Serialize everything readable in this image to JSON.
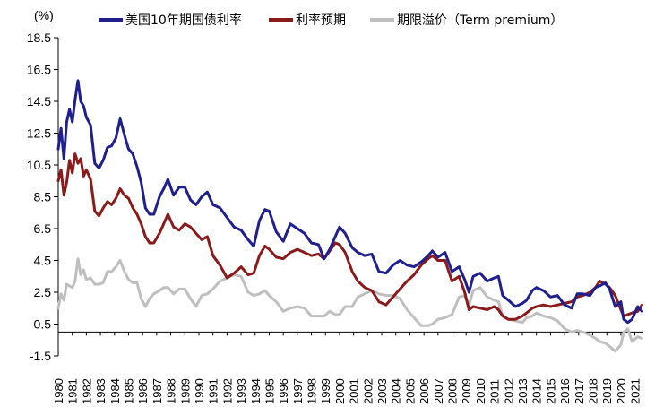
{
  "chart_data": {
    "type": "line",
    "title": "",
    "unit_label": "(%)",
    "xlabel": "",
    "ylabel": "(%)",
    "ylim": [
      -1.5,
      18.5
    ],
    "yticks": [
      -1.5,
      0.5,
      2.5,
      4.5,
      6.5,
      8.5,
      10.5,
      12.5,
      14.5,
      16.5,
      18.5
    ],
    "ytick_labels": [
      "-1.5",
      "0.5",
      "2.5",
      "4.5",
      "6.5",
      "8.5",
      "10.5",
      "12.5",
      "14.5",
      "16.5",
      "18.5"
    ],
    "xlim": [
      1980,
      2021.6
    ],
    "xtick_labels": [
      "1980",
      "1981",
      "1982",
      "1983",
      "1984",
      "1985",
      "1986",
      "1987",
      "1988",
      "1989",
      "1990",
      "1991",
      "1992",
      "1993",
      "1994",
      "1995",
      "1996",
      "1997",
      "1998",
      "1999",
      "2000",
      "2001",
      "2002",
      "2003",
      "2004",
      "2005",
      "2006",
      "2007",
      "2008",
      "2009",
      "2010",
      "2011",
      "2012",
      "2013",
      "2014",
      "2015",
      "2016",
      "2017",
      "2018",
      "2019",
      "2020",
      "2021"
    ],
    "legend_position": "top",
    "series": [
      {
        "name": "美国10年期国债利率",
        "color": "#1f1f8f",
        "x": [
          1980.0,
          1980.2,
          1980.4,
          1980.6,
          1980.8,
          1981.0,
          1981.2,
          1981.4,
          1981.6,
          1981.8,
          1982.0,
          1982.3,
          1982.6,
          1982.9,
          1983.2,
          1983.5,
          1983.8,
          1984.1,
          1984.4,
          1984.7,
          1985.0,
          1985.3,
          1985.6,
          1985.9,
          1986.2,
          1986.5,
          1986.8,
          1987.2,
          1987.5,
          1987.8,
          1988.2,
          1988.6,
          1989.0,
          1989.4,
          1989.8,
          1990.2,
          1990.6,
          1991.0,
          1991.5,
          1992.0,
          1992.5,
          1993.0,
          1993.5,
          1993.9,
          1994.3,
          1994.7,
          1995.0,
          1995.5,
          1996.0,
          1996.5,
          1997.0,
          1997.5,
          1998.0,
          1998.5,
          1998.9,
          1999.3,
          1999.7,
          2000.0,
          2000.4,
          2000.9,
          2001.3,
          2001.8,
          2002.3,
          2002.8,
          2003.3,
          2003.8,
          2004.3,
          2004.8,
          2005.3,
          2005.8,
          2006.3,
          2006.6,
          2007.0,
          2007.5,
          2008.0,
          2008.5,
          2008.9,
          2009.2,
          2009.5,
          2010.0,
          2010.5,
          2011.0,
          2011.3,
          2011.6,
          2012.0,
          2012.5,
          2013.0,
          2013.3,
          2013.7,
          2014.0,
          2014.5,
          2015.0,
          2015.5,
          2016.0,
          2016.5,
          2016.9,
          2017.3,
          2017.8,
          2018.2,
          2018.5,
          2018.9,
          2019.2,
          2019.6,
          2020.0,
          2020.2,
          2020.5,
          2020.8,
          2021.2,
          2021.5
        ],
        "values": [
          11.5,
          12.8,
          10.9,
          13.2,
          14.0,
          13.2,
          14.6,
          15.8,
          14.5,
          14.2,
          13.5,
          13.0,
          10.6,
          10.3,
          10.8,
          11.6,
          11.7,
          12.2,
          13.4,
          12.4,
          11.5,
          11.2,
          10.4,
          9.4,
          7.8,
          7.4,
          7.4,
          8.5,
          9.0,
          9.6,
          8.6,
          9.1,
          9.1,
          8.3,
          8.0,
          8.5,
          8.8,
          8.0,
          7.8,
          7.2,
          6.6,
          6.4,
          5.8,
          5.4,
          7.0,
          7.7,
          7.6,
          6.3,
          5.7,
          6.8,
          6.5,
          6.2,
          5.6,
          5.5,
          4.6,
          5.2,
          6.0,
          6.6,
          6.2,
          5.3,
          5.0,
          4.8,
          4.9,
          3.8,
          3.7,
          4.2,
          4.5,
          4.2,
          4.1,
          4.4,
          4.8,
          5.1,
          4.7,
          5.0,
          3.8,
          4.1,
          3.3,
          2.5,
          3.5,
          3.7,
          3.2,
          3.4,
          3.5,
          2.3,
          2.0,
          1.6,
          1.8,
          2.0,
          2.6,
          2.8,
          2.6,
          2.2,
          2.3,
          1.7,
          1.5,
          2.4,
          2.4,
          2.3,
          2.8,
          2.9,
          3.1,
          2.7,
          1.6,
          1.9,
          0.8,
          0.6,
          0.8,
          1.6,
          1.3
        ]
      },
      {
        "name": "利率预期",
        "color": "#8b1a1a",
        "x": [
          1980.0,
          1980.2,
          1980.4,
          1980.6,
          1980.8,
          1981.0,
          1981.2,
          1981.4,
          1981.6,
          1981.8,
          1982.0,
          1982.3,
          1982.6,
          1982.9,
          1983.2,
          1983.5,
          1983.8,
          1984.1,
          1984.4,
          1984.7,
          1985.0,
          1985.3,
          1985.6,
          1985.9,
          1986.2,
          1986.5,
          1986.8,
          1987.2,
          1987.5,
          1987.8,
          1988.2,
          1988.6,
          1989.0,
          1989.4,
          1989.8,
          1990.2,
          1990.6,
          1991.0,
          1991.5,
          1992.0,
          1992.5,
          1993.0,
          1993.5,
          1993.9,
          1994.3,
          1994.7,
          1995.0,
          1995.5,
          1996.0,
          1996.5,
          1997.0,
          1997.5,
          1998.0,
          1998.5,
          1998.9,
          1999.3,
          1999.7,
          2000.0,
          2000.4,
          2000.9,
          2001.3,
          2001.8,
          2002.3,
          2002.8,
          2003.3,
          2003.8,
          2004.3,
          2004.8,
          2005.3,
          2005.8,
          2006.3,
          2006.6,
          2007.0,
          2007.5,
          2008.0,
          2008.5,
          2008.9,
          2009.2,
          2009.5,
          2010.0,
          2010.5,
          2011.0,
          2011.3,
          2011.6,
          2012.0,
          2012.5,
          2013.0,
          2013.3,
          2013.7,
          2014.0,
          2014.5,
          2015.0,
          2015.5,
          2016.0,
          2016.5,
          2016.9,
          2017.3,
          2017.8,
          2018.2,
          2018.5,
          2018.9,
          2019.2,
          2019.6,
          2020.0,
          2020.2,
          2020.5,
          2020.8,
          2021.2,
          2021.5
        ],
        "values": [
          9.5,
          10.2,
          8.6,
          9.4,
          10.8,
          10.0,
          11.2,
          10.6,
          10.9,
          9.8,
          10.2,
          9.6,
          7.6,
          7.3,
          7.8,
          8.2,
          8.0,
          8.4,
          9.0,
          8.6,
          8.4,
          7.8,
          7.4,
          6.8,
          6.0,
          5.6,
          5.6,
          6.2,
          6.8,
          7.4,
          6.6,
          6.4,
          6.8,
          6.6,
          6.2,
          5.8,
          6.0,
          4.8,
          4.2,
          3.4,
          3.7,
          4.1,
          3.6,
          3.7,
          4.8,
          5.4,
          5.2,
          4.7,
          4.6,
          5.0,
          5.2,
          5.0,
          4.8,
          4.9,
          4.6,
          5.1,
          5.6,
          5.5,
          5.0,
          3.8,
          3.2,
          2.8,
          2.6,
          1.9,
          1.7,
          2.2,
          2.7,
          3.2,
          3.6,
          4.2,
          4.6,
          4.8,
          4.5,
          4.5,
          3.2,
          3.5,
          2.5,
          1.4,
          1.6,
          1.5,
          1.4,
          1.6,
          1.4,
          1.0,
          0.8,
          0.8,
          1.0,
          1.2,
          1.5,
          1.6,
          1.7,
          1.6,
          1.7,
          1.8,
          1.9,
          2.2,
          2.3,
          2.5,
          2.8,
          3.2,
          3.0,
          2.8,
          2.3,
          1.4,
          1.0,
          1.1,
          1.2,
          1.3,
          1.7
        ]
      },
      {
        "name": "期限溢价（Term premium）",
        "color": "#bfbfbf",
        "x": [
          1980.0,
          1980.2,
          1980.4,
          1980.6,
          1980.8,
          1981.0,
          1981.2,
          1981.4,
          1981.6,
          1981.8,
          1982.0,
          1982.3,
          1982.6,
          1982.9,
          1983.2,
          1983.5,
          1983.8,
          1984.1,
          1984.4,
          1984.7,
          1985.0,
          1985.3,
          1985.6,
          1985.9,
          1986.2,
          1986.5,
          1986.8,
          1987.2,
          1987.5,
          1987.8,
          1988.2,
          1988.6,
          1989.0,
          1989.4,
          1989.8,
          1990.2,
          1990.6,
          1991.0,
          1991.5,
          1992.0,
          1992.5,
          1993.0,
          1993.5,
          1993.9,
          1994.3,
          1994.7,
          1995.0,
          1995.5,
          1996.0,
          1996.5,
          1997.0,
          1997.5,
          1998.0,
          1998.5,
          1998.9,
          1999.3,
          1999.7,
          2000.0,
          2000.4,
          2000.9,
          2001.3,
          2001.8,
          2002.3,
          2002.8,
          2003.3,
          2003.8,
          2004.3,
          2004.8,
          2005.3,
          2005.8,
          2006.3,
          2006.6,
          2007.0,
          2007.5,
          2008.0,
          2008.5,
          2008.9,
          2009.2,
          2009.5,
          2010.0,
          2010.5,
          2011.0,
          2011.3,
          2011.6,
          2012.0,
          2012.5,
          2013.0,
          2013.3,
          2013.7,
          2014.0,
          2014.5,
          2015.0,
          2015.5,
          2016.0,
          2016.5,
          2016.9,
          2017.3,
          2017.8,
          2018.2,
          2018.5,
          2018.9,
          2019.2,
          2019.6,
          2020.0,
          2020.2,
          2020.5,
          2020.8,
          2021.2,
          2021.5
        ],
        "values": [
          1.5,
          2.4,
          2.0,
          3.0,
          2.9,
          2.8,
          3.2,
          4.6,
          3.6,
          3.9,
          3.3,
          3.4,
          3.0,
          3.0,
          3.1,
          3.8,
          3.8,
          4.1,
          4.5,
          3.8,
          3.3,
          3.1,
          3.1,
          2.1,
          1.6,
          2.1,
          2.4,
          2.6,
          2.8,
          2.8,
          2.4,
          2.7,
          2.7,
          2.1,
          1.6,
          2.3,
          2.4,
          2.7,
          3.2,
          3.4,
          3.6,
          3.5,
          2.5,
          2.3,
          2.4,
          2.6,
          2.3,
          1.9,
          1.3,
          1.5,
          1.6,
          1.5,
          1.0,
          1.0,
          1.0,
          1.3,
          1.1,
          1.1,
          1.6,
          1.6,
          2.2,
          2.4,
          2.6,
          2.4,
          2.3,
          2.3,
          2.1,
          1.4,
          0.9,
          0.4,
          0.4,
          0.5,
          0.8,
          0.9,
          1.1,
          2.2,
          2.3,
          1.7,
          2.6,
          2.8,
          2.2,
          2.0,
          1.9,
          1.0,
          0.8,
          0.7,
          0.6,
          0.9,
          1.0,
          1.2,
          1.0,
          0.9,
          0.7,
          0.2,
          0.0,
          0.1,
          0.0,
          -0.2,
          -0.4,
          -0.6,
          -0.7,
          -0.9,
          -1.2,
          -0.8,
          0.0,
          0.2,
          -0.6,
          -0.3,
          -0.4
        ]
      }
    ]
  }
}
